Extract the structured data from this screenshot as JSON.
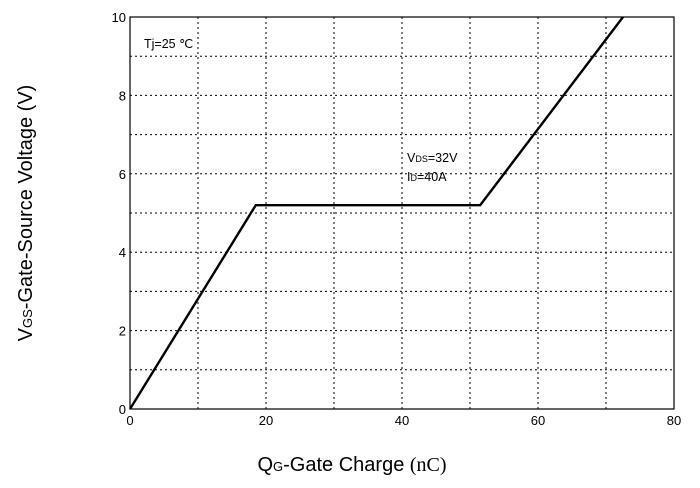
{
  "chart_data": {
    "type": "line",
    "title": "",
    "xlabel_main": "Q",
    "xlabel_sub": "G",
    "xlabel_rest": "-Gate Charge ",
    "xlabel_unit": "(nC)",
    "ylabel_main": "V",
    "ylabel_sub": "GS",
    "ylabel_rest": "-Gate-Source Voltage (V)",
    "xlim": [
      0,
      80
    ],
    "ylim": [
      0,
      10
    ],
    "x_ticks": [
      0,
      20,
      40,
      60,
      80
    ],
    "y_ticks": [
      0,
      2,
      4,
      6,
      8,
      10
    ],
    "grid": true,
    "series": [
      {
        "x": [
          0,
          18.5,
          51.5,
          72.5
        ],
        "y": [
          0,
          5.2,
          5.2,
          10
        ]
      }
    ],
    "annotations": {
      "tj": "Tj=25 ℃",
      "vds_main": "V",
      "vds_sub": "DS",
      "vds_rest": "=32V",
      "id_main": "I",
      "id_sub": "D",
      "id_rest": "=40A"
    }
  }
}
